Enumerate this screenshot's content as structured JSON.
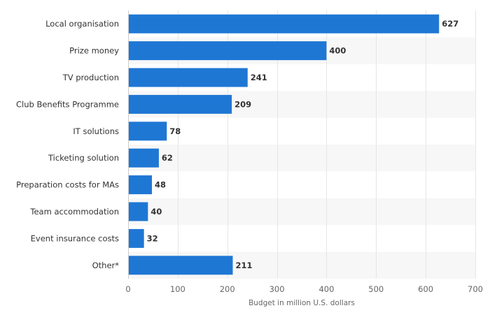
{
  "chart_data": {
    "type": "bar",
    "orientation": "horizontal",
    "categories": [
      "Local organisation",
      "Prize money",
      "TV production",
      "Club Benefits Programme",
      "IT solutions",
      "Ticketing solution",
      "Preparation costs for MAs",
      "Team accommodation",
      "Event insurance costs",
      "Other*"
    ],
    "values": [
      627,
      400,
      241,
      209,
      78,
      62,
      48,
      40,
      32,
      211
    ],
    "value_labels": [
      "627",
      "400",
      "241",
      "209",
      "78",
      "62",
      "48",
      "40",
      "32",
      "211"
    ],
    "xlabel": "Budget in million U.S. dollars",
    "ylabel": "",
    "xlim": [
      0,
      700
    ],
    "xticks": [
      0,
      100,
      200,
      300,
      400,
      500,
      600,
      700
    ],
    "xtick_labels": [
      "0",
      "100",
      "200",
      "300",
      "400",
      "500",
      "600",
      "700"
    ],
    "grid": true,
    "bar_color": "#1f77d4",
    "alt_row_color": "#f7f7f7",
    "grid_color": "#e6e6e6"
  }
}
